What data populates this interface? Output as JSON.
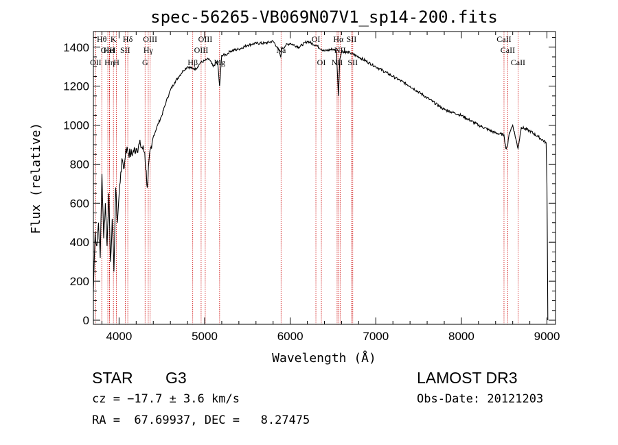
{
  "chart_data": {
    "type": "line",
    "title": "spec-56265-VB069N07V1_sp14-200.fits",
    "xlabel": "Wavelength (Å)",
    "ylabel": "Flux (relative)",
    "xlim": [
      3700,
      9100
    ],
    "ylim": [
      0,
      1480
    ],
    "xticks": [
      4000,
      5000,
      6000,
      7000,
      8000,
      9000
    ],
    "yticks": [
      0,
      200,
      400,
      600,
      800,
      1000,
      1200,
      1400
    ],
    "series": [
      {
        "name": "flux",
        "x": [
          3700,
          3720,
          3740,
          3760,
          3780,
          3800,
          3820,
          3840,
          3860,
          3880,
          3900,
          3920,
          3940,
          3960,
          3980,
          4000,
          4020,
          4040,
          4060,
          4080,
          4100,
          4130,
          4160,
          4200,
          4250,
          4300,
          4330,
          4350,
          4380,
          4400,
          4450,
          4500,
          4550,
          4600,
          4650,
          4700,
          4750,
          4800,
          4860,
          4900,
          4950,
          5000,
          5050,
          5100,
          5150,
          5175,
          5200,
          5250,
          5300,
          5400,
          5500,
          5600,
          5700,
          5800,
          5850,
          5890,
          5900,
          5950,
          6000,
          6100,
          6200,
          6300,
          6400,
          6500,
          6540,
          6563,
          6580,
          6600,
          6700,
          6800,
          7000,
          7200,
          7400,
          7600,
          7800,
          8000,
          8200,
          8400,
          8498,
          8520,
          8542,
          8560,
          8600,
          8662,
          8700,
          8800,
          8900,
          8990,
          9000,
          9010
        ],
        "values": [
          150,
          450,
          380,
          500,
          320,
          750,
          420,
          600,
          380,
          650,
          300,
          520,
          250,
          680,
          500,
          640,
          760,
          820,
          780,
          880,
          870,
          850,
          860,
          880,
          900,
          860,
          680,
          820,
          880,
          940,
          1000,
          1050,
          1120,
          1180,
          1220,
          1250,
          1280,
          1300,
          1290,
          1290,
          1320,
          1330,
          1340,
          1300,
          1330,
          1200,
          1360,
          1360,
          1380,
          1390,
          1410,
          1420,
          1420,
          1430,
          1400,
          1350,
          1390,
          1410,
          1420,
          1400,
          1430,
          1410,
          1380,
          1390,
          1380,
          1150,
          1340,
          1380,
          1370,
          1350,
          1300,
          1250,
          1200,
          1140,
          1080,
          1050,
          1000,
          960,
          950,
          880,
          900,
          960,
          1000,
          880,
          990,
          970,
          940,
          910,
          700,
          0
        ]
      }
    ],
    "lines": [
      {
        "name": "OII",
        "wave": 3727,
        "row": 3
      },
      {
        "name": "Hθ",
        "wave": 3798,
        "row": 1
      },
      {
        "name": "OIII",
        "wave": 3869,
        "row": 2
      },
      {
        "name": "Hη",
        "wave": 3889,
        "row": 3
      },
      {
        "name": "HeI",
        "wave": 3889,
        "row": 2
      },
      {
        "name": "K",
        "wave": 3934,
        "row": 1
      },
      {
        "name": "SII",
        "wave": 4072,
        "row": 2
      },
      {
        "name": "H",
        "wave": 3969,
        "row": 3
      },
      {
        "name": "Hδ",
        "wave": 4102,
        "row": 1
      },
      {
        "name": "OIII",
        "wave": 4363,
        "row": 1
      },
      {
        "name": "Hγ",
        "wave": 4341,
        "row": 2
      },
      {
        "name": "G",
        "wave": 4304,
        "row": 3
      },
      {
        "name": "Hβ",
        "wave": 4861,
        "row": 3
      },
      {
        "name": "OIII",
        "wave": 4959,
        "row": 2
      },
      {
        "name": "OIII",
        "wave": 5007,
        "row": 1
      },
      {
        "name": "Mg",
        "wave": 5175,
        "row": 3
      },
      {
        "name": "Na",
        "wave": 5893,
        "row": 2
      },
      {
        "name": "OI",
        "wave": 6300,
        "row": 1
      },
      {
        "name": "OI",
        "wave": 6364,
        "row": 3
      },
      {
        "name": "NII",
        "wave": 6548,
        "row": 3
      },
      {
        "name": "Hα",
        "wave": 6563,
        "row": 1
      },
      {
        "name": "NII",
        "wave": 6583,
        "row": 2
      },
      {
        "name": "SII",
        "wave": 6716,
        "row": 1
      },
      {
        "name": "SII",
        "wave": 6731,
        "row": 3
      },
      {
        "name": "CaII",
        "wave": 8498,
        "row": 1
      },
      {
        "name": "CaII",
        "wave": 8542,
        "row": 2
      },
      {
        "name": "CaII",
        "wave": 8662,
        "row": 3
      }
    ]
  },
  "info": {
    "object_class": "STAR",
    "subclass": "G3",
    "survey": "LAMOST DR3",
    "cz_text": "cz = −17.7 ± 3.6 km/s",
    "obs_date": "Obs-Date: 20121203",
    "coords_text": "RA =  67.69937, DEC =   8.27475"
  },
  "colors": {
    "spectrum": "#000000",
    "line_markers": "#cc0000"
  }
}
